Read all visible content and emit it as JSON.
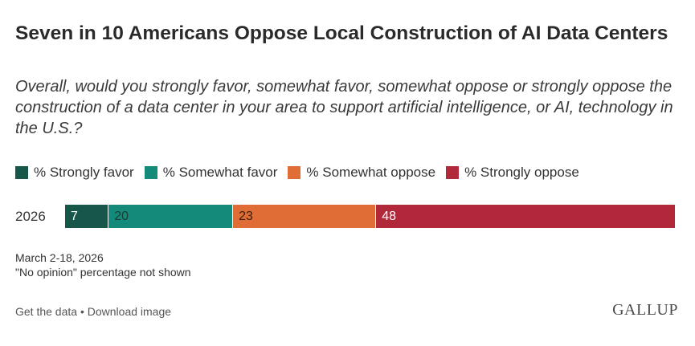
{
  "chart_data": {
    "type": "bar",
    "orientation": "horizontal-stacked",
    "title": "Seven in 10 Americans Oppose Local Construction of AI Data Centers",
    "subtitle": "Overall, would you strongly favor, somewhat favor, somewhat oppose or strongly oppose the construction of a data center in your area to support artificial intelligence, or AI, technology in the U.S.?",
    "categories": [
      "2026"
    ],
    "series": [
      {
        "name": "% Strongly favor",
        "values": [
          7
        ],
        "color": "#17574a",
        "label_color": "#ffffff"
      },
      {
        "name": "% Somewhat favor",
        "values": [
          20
        ],
        "color": "#138a7a",
        "label_color": "#1e3b34"
      },
      {
        "name": "% Somewhat oppose",
        "values": [
          23
        ],
        "color": "#e06d35",
        "label_color": "#3a2015"
      },
      {
        "name": "% Strongly oppose",
        "values": [
          48
        ],
        "color": "#b1283a",
        "label_color": "#ffffff"
      }
    ],
    "legend_position": "top-left",
    "grid": false
  },
  "notes": {
    "date": "March 2-18, 2026",
    "no_opinion": "\"No opinion\" percentage not shown"
  },
  "footer": {
    "get_data": "Get the data",
    "separator": "•",
    "download": "Download image",
    "logo": "GALLUP"
  }
}
